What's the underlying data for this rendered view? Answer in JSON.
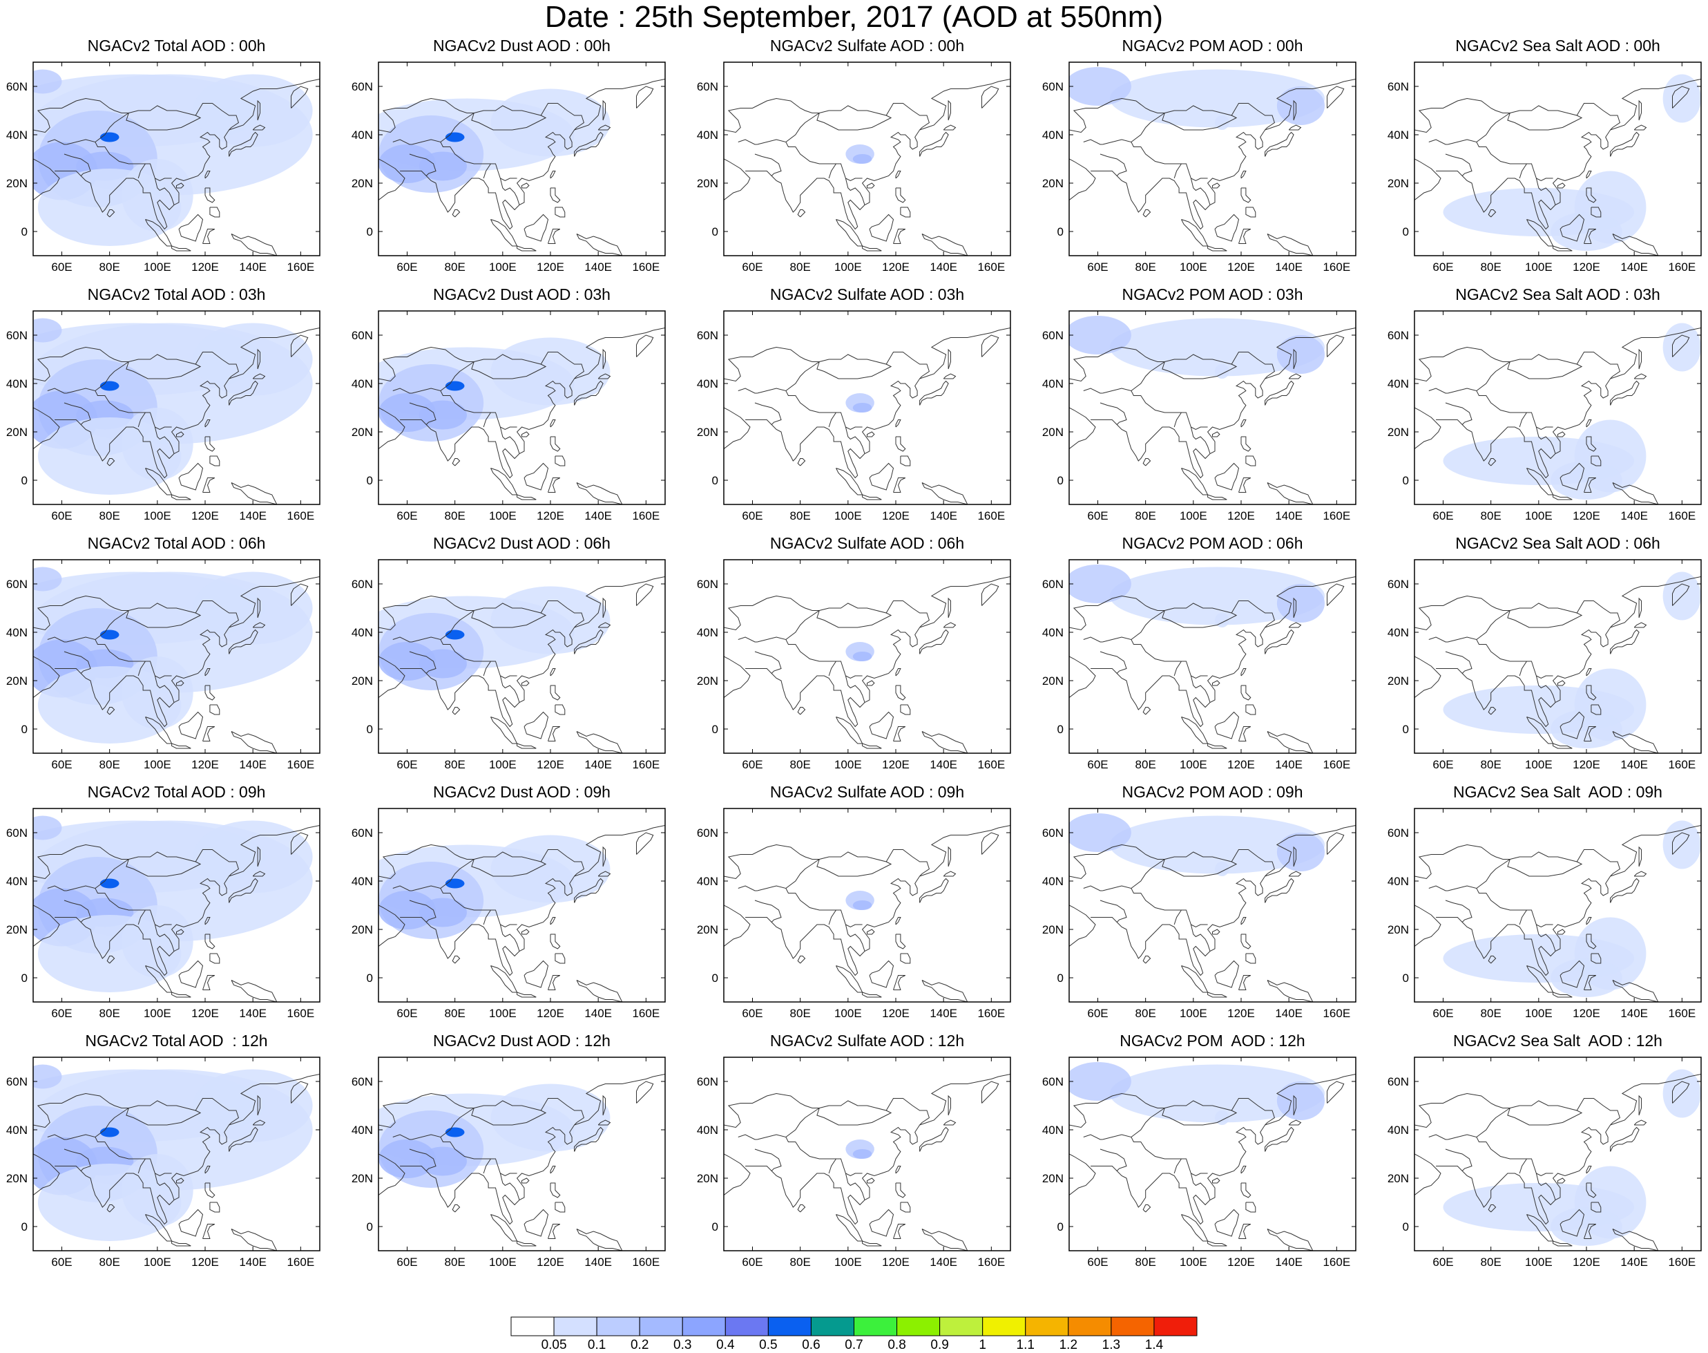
{
  "title": "Date : 25th September, 2017 (AOD at 550nm)",
  "panels": [
    [
      "NGACv2 Total AOD : 00h",
      "NGACv2 Dust AOD : 00h",
      "NGACv2 Sulfate AOD : 00h",
      "NGACv2 POM AOD : 00h",
      "NGACv2 Sea Salt AOD : 00h"
    ],
    [
      "NGACv2 Total AOD : 03h",
      "NGACv2 Dust AOD : 03h",
      "NGACv2 Sulfate AOD : 03h",
      "NGACv2 POM AOD : 03h",
      "NGACv2 Sea Salt AOD : 03h"
    ],
    [
      "NGACv2 Total AOD : 06h",
      "NGACv2 Dust AOD : 06h",
      "NGACv2 Sulfate AOD : 06h",
      "NGACv2 POM AOD : 06h",
      "NGACv2 Sea Salt AOD : 06h"
    ],
    [
      "NGACv2 Total AOD : 09h",
      "NGACv2 Dust AOD : 09h",
      "NGACv2 Sulfate AOD : 09h",
      "NGACv2 POM AOD : 09h",
      "NGACv2 Sea Salt  AOD : 09h"
    ],
    [
      "NGACv2 Total AOD  : 12h",
      "NGACv2 Dust AOD : 12h",
      "NGACv2 Sulfate AOD : 12h",
      "NGACv2 POM  AOD : 12h",
      "NGACv2 Sea Salt  AOD : 12h"
    ]
  ],
  "x_ticks": [
    "60E",
    "80E",
    "100E",
    "120E",
    "140E",
    "160E"
  ],
  "y_ticks": [
    "60N",
    "40N",
    "20N",
    "0"
  ],
  "colorbar": {
    "labels": [
      "0.05",
      "0.1",
      "0.2",
      "0.3",
      "0.4",
      "0.5",
      "0.6",
      "0.7",
      "0.8",
      "0.9",
      "1",
      "1.1",
      "1.2",
      "1.3",
      "1.4"
    ],
    "colors": [
      "#ffffff",
      "#d4e0ff",
      "#bccdff",
      "#a4baff",
      "#8ca5ff",
      "#6b78f2",
      "#0a60f0",
      "#059a8f",
      "#3cf03c",
      "#8cf000",
      "#bef03c",
      "#f0f000",
      "#f5b400",
      "#f58c00",
      "#f56400",
      "#f01e0a"
    ]
  }
}
